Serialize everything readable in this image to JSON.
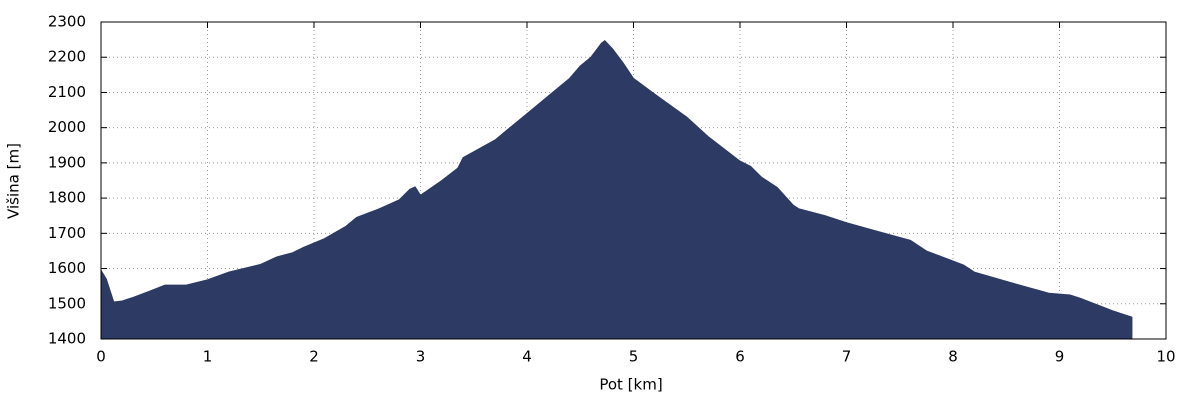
{
  "chart_data": {
    "type": "area",
    "xlabel": "Pot [km]",
    "ylabel": "Višina [m]",
    "color": "#2d3a63",
    "grid": true,
    "xlim": [
      0,
      10
    ],
    "ylim": [
      1400,
      2300
    ],
    "xticks": [
      0,
      1,
      2,
      3,
      4,
      5,
      6,
      7,
      8,
      9,
      10
    ],
    "yticks": [
      1400,
      1500,
      1600,
      1700,
      1800,
      1900,
      2000,
      2100,
      2200,
      2300
    ],
    "x": [
      0,
      0.05,
      0.12,
      0.2,
      0.3,
      0.45,
      0.6,
      0.8,
      1.0,
      1.2,
      1.5,
      1.65,
      1.8,
      1.9,
      2.1,
      2.3,
      2.4,
      2.6,
      2.8,
      2.9,
      2.95,
      3.0,
      3.2,
      3.35,
      3.4,
      3.7,
      4.0,
      4.2,
      4.4,
      4.5,
      4.6,
      4.7,
      4.73,
      4.8,
      4.9,
      5.0,
      5.2,
      5.5,
      5.7,
      6.0,
      6.1,
      6.2,
      6.35,
      6.5,
      6.55,
      6.8,
      7.0,
      7.3,
      7.6,
      7.75,
      8.1,
      8.2,
      8.6,
      8.9,
      9.1,
      9.2,
      9.5,
      9.65,
      9.68
    ],
    "values": [
      1595,
      1570,
      1505,
      1508,
      1518,
      1535,
      1553,
      1553,
      1568,
      1590,
      1612,
      1633,
      1645,
      1660,
      1685,
      1720,
      1745,
      1768,
      1795,
      1825,
      1832,
      1808,
      1850,
      1885,
      1915,
      1965,
      2040,
      2090,
      2140,
      2175,
      2200,
      2240,
      2247,
      2225,
      2185,
      2140,
      2095,
      2030,
      1975,
      1905,
      1890,
      1860,
      1830,
      1780,
      1770,
      1750,
      1730,
      1705,
      1680,
      1650,
      1610,
      1590,
      1555,
      1530,
      1525,
      1515,
      1480,
      1465,
      1462
    ]
  }
}
